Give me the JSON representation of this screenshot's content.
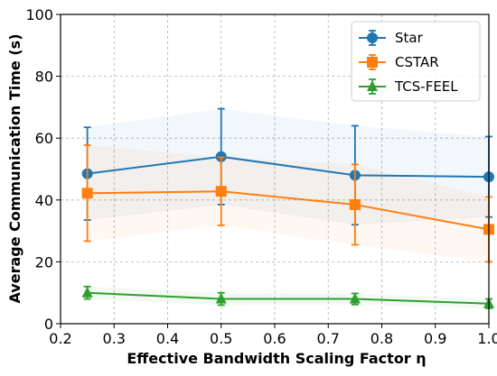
{
  "chart_data": {
    "type": "line",
    "xlabel": "Effective Bandwidth Scaling Factor η",
    "ylabel": "Average Communication Time (s)",
    "xlim": [
      0.2,
      1.0
    ],
    "ylim": [
      0,
      100
    ],
    "xticks": [
      "0.2",
      "0.3",
      "0.4",
      "0.5",
      "0.6",
      "0.7",
      "0.8",
      "0.9",
      "1.0"
    ],
    "yticks": [
      "0",
      "20",
      "40",
      "60",
      "80",
      "100"
    ],
    "grid": true,
    "legend_position": "top-right",
    "x": [
      0.25,
      0.5,
      0.75,
      1.0
    ],
    "series": [
      {
        "name": "Star",
        "color": "#1f77b4",
        "marker": "circle",
        "values": [
          48.5,
          54.0,
          48.0,
          47.5
        ],
        "error": [
          15.0,
          15.5,
          16.0,
          13.0
        ]
      },
      {
        "name": "CSTAR",
        "color": "#ff7f0e",
        "marker": "square",
        "values": [
          42.2,
          42.8,
          38.5,
          30.5
        ],
        "error": [
          15.5,
          11.0,
          13.0,
          10.5
        ]
      },
      {
        "name": "TCS-FEEL",
        "color": "#2ca02c",
        "marker": "triangle",
        "values": [
          10.0,
          8.0,
          8.0,
          6.5
        ],
        "error": [
          2.0,
          2.0,
          1.8,
          1.5
        ]
      }
    ]
  }
}
